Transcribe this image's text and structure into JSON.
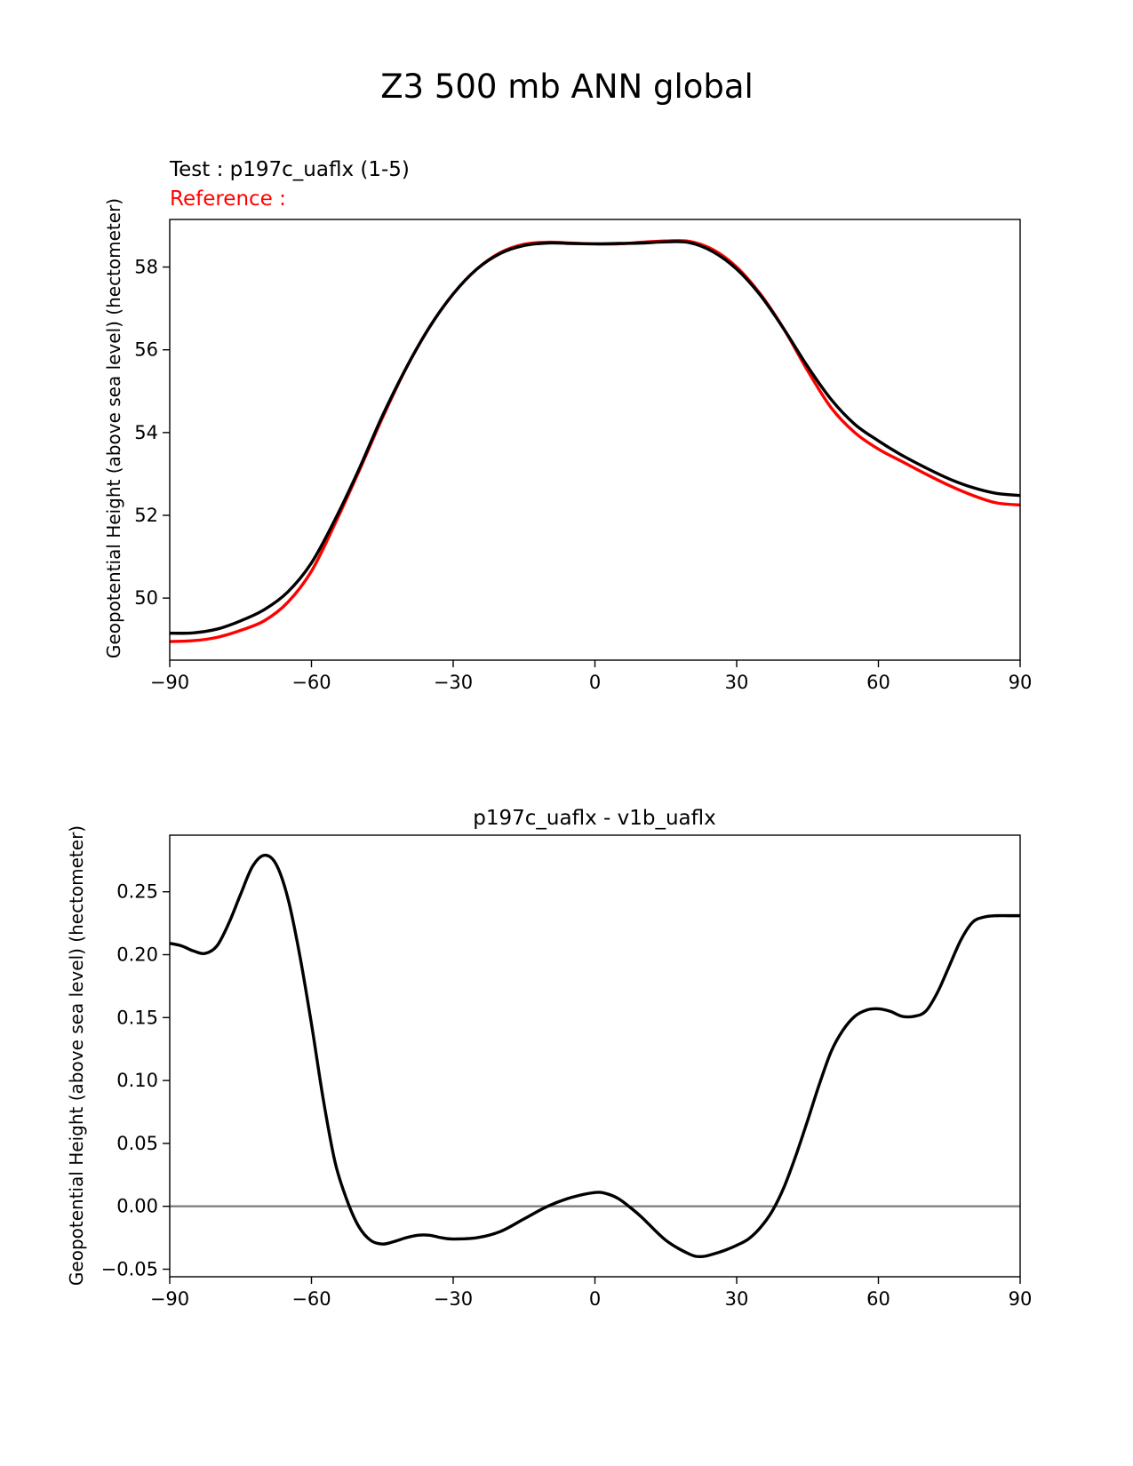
{
  "figure_title": "Z3 500 mb ANN global",
  "chart_data": [
    {
      "type": "line",
      "test_label": "Test : p197c_uaflx (1-5)",
      "reference_label": "Reference :",
      "ylabel": "Geopotential Height (above sea level) (hectometer)",
      "xlabel": "",
      "xlim": [
        -90,
        90
      ],
      "ylim": [
        48.5,
        59.15
      ],
      "xticks": [
        -90,
        -60,
        -30,
        0,
        30,
        60,
        90
      ],
      "xtick_labels": [
        "−90",
        "−60",
        "−30",
        "0",
        "30",
        "60",
        "90"
      ],
      "yticks": [
        50,
        52,
        54,
        56,
        58
      ],
      "ytick_labels": [
        "50",
        "52",
        "54",
        "56",
        "58"
      ],
      "colors": {
        "test": "#000000",
        "reference": "#ff0000"
      },
      "x": [
        -90,
        -85,
        -80,
        -75,
        -70,
        -65,
        -60,
        -55,
        -50,
        -45,
        -40,
        -35,
        -30,
        -25,
        -20,
        -15,
        -10,
        -5,
        0,
        5,
        10,
        15,
        20,
        25,
        30,
        35,
        40,
        45,
        50,
        55,
        60,
        65,
        70,
        75,
        80,
        85,
        90
      ],
      "series": [
        {
          "name": "reference",
          "values": [
            48.95,
            48.97,
            49.05,
            49.22,
            49.45,
            49.9,
            50.65,
            51.8,
            53.05,
            54.35,
            55.55,
            56.55,
            57.35,
            57.95,
            58.35,
            58.55,
            58.6,
            58.58,
            58.56,
            58.56,
            58.6,
            58.63,
            58.62,
            58.42,
            58.0,
            57.35,
            56.5,
            55.5,
            54.6,
            54.0,
            53.6,
            53.3,
            53.0,
            52.72,
            52.48,
            52.3,
            52.25
          ]
        },
        {
          "name": "test",
          "values": [
            49.15,
            49.16,
            49.25,
            49.45,
            49.72,
            50.15,
            50.85,
            51.9,
            53.1,
            54.4,
            55.55,
            56.55,
            57.35,
            57.95,
            58.33,
            58.52,
            58.58,
            58.57,
            58.56,
            58.57,
            58.58,
            58.61,
            58.59,
            58.37,
            57.95,
            57.32,
            56.5,
            55.6,
            54.8,
            54.2,
            53.8,
            53.45,
            53.15,
            52.88,
            52.67,
            52.53,
            52.48
          ]
        }
      ]
    },
    {
      "type": "line",
      "title": "p197c_uaflx - v1b_uaflx",
      "ylabel": "Geopotential Height (above sea level) (hectometer)",
      "xlabel": "",
      "xlim": [
        -90,
        90
      ],
      "ylim": [
        -0.056,
        0.295
      ],
      "xticks": [
        -90,
        -60,
        -30,
        0,
        30,
        60,
        90
      ],
      "xtick_labels": [
        "−90",
        "−60",
        "−30",
        "0",
        "30",
        "60",
        "90"
      ],
      "yticks": [
        -0.05,
        0.0,
        0.05,
        0.1,
        0.15,
        0.2,
        0.25
      ],
      "ytick_labels": [
        "−0.05",
        "0.00",
        "0.05",
        "0.10",
        "0.15",
        "0.20",
        "0.25"
      ],
      "zero_line": 0,
      "colors": {
        "line": "#000000",
        "zero_line": "#808080"
      },
      "x": [
        -90,
        -87.5,
        -85,
        -82.5,
        -80,
        -77.5,
        -75,
        -72.5,
        -70,
        -67.5,
        -65,
        -62.5,
        -60,
        -57.5,
        -55,
        -52.5,
        -50,
        -47.5,
        -45,
        -42.5,
        -40,
        -37.5,
        -35,
        -32.5,
        -30,
        -25,
        -20,
        -15,
        -10,
        -5,
        0,
        2.5,
        5,
        7.5,
        10,
        15,
        20,
        22.5,
        25,
        27.5,
        30,
        32.5,
        35,
        37.5,
        40,
        42.5,
        45,
        47.5,
        50,
        52.5,
        55,
        57.5,
        60,
        62.5,
        65,
        67.5,
        70,
        72.5,
        75,
        77.5,
        80,
        82.5,
        85,
        87.5,
        90
      ],
      "series": [
        {
          "name": "difference",
          "values": [
            0.209,
            0.207,
            0.203,
            0.201,
            0.207,
            0.225,
            0.248,
            0.27,
            0.279,
            0.272,
            0.245,
            0.2,
            0.145,
            0.085,
            0.035,
            0.005,
            -0.016,
            -0.027,
            -0.03,
            -0.028,
            -0.025,
            -0.023,
            -0.023,
            -0.025,
            -0.026,
            -0.025,
            -0.02,
            -0.01,
            0.0,
            0.007,
            0.011,
            0.01,
            0.006,
            -0.001,
            -0.009,
            -0.027,
            -0.038,
            -0.04,
            -0.038,
            -0.035,
            -0.031,
            -0.026,
            -0.017,
            -0.004,
            0.015,
            0.04,
            0.068,
            0.097,
            0.123,
            0.14,
            0.151,
            0.156,
            0.157,
            0.155,
            0.151,
            0.151,
            0.155,
            0.17,
            0.191,
            0.212,
            0.226,
            0.23,
            0.231,
            0.231,
            0.231
          ]
        }
      ]
    }
  ]
}
